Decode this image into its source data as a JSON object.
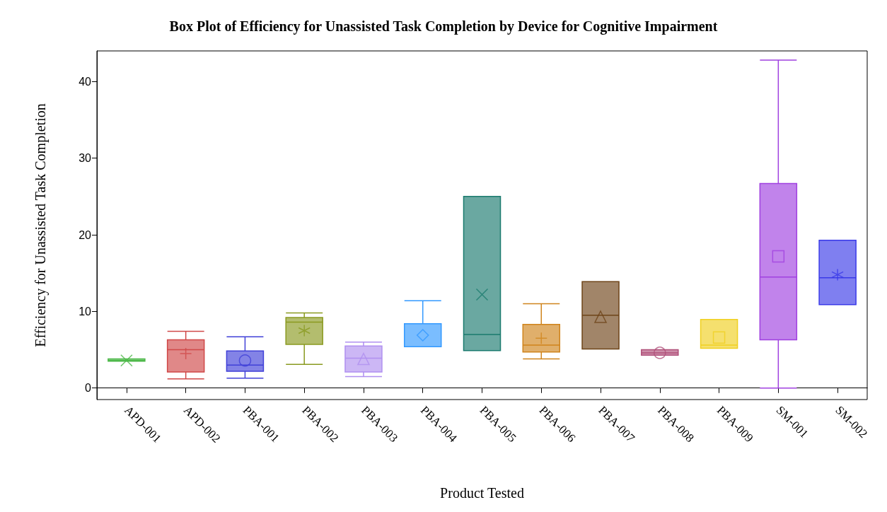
{
  "chart_data": {
    "type": "box",
    "title": "Box Plot of Efficiency for Unassisted Task Completion by Device for Cognitive Impairment",
    "xlabel": "Product Tested",
    "ylabel": "Efficiency for Unassisted Task Completion",
    "categories": [
      "APD-001",
      "APD-002",
      "PBA-001",
      "PBA-002",
      "PBA-003",
      "PBA-004",
      "PBA-005",
      "PBA-006",
      "PBA-007",
      "PBA-008",
      "PBA-009",
      "SM-001",
      "SM-002"
    ],
    "colors": [
      "#4cb848",
      "#d04848",
      "#4040d8",
      "#8a9a20",
      "#b090f0",
      "#3399ff",
      "#1a7a6e",
      "#d0841c",
      "#6e4418",
      "#b0507a",
      "#f0d020",
      "#a040e0",
      "#3a3ae8"
    ],
    "boxes": [
      {
        "low": 3.5,
        "q1": 3.5,
        "median": 3.6,
        "q3": 3.8,
        "high": 3.8,
        "mean": 3.6
      },
      {
        "low": 1.2,
        "q1": 2.1,
        "median": 5.0,
        "q3": 6.3,
        "high": 7.4,
        "mean": 4.5
      },
      {
        "low": 1.3,
        "q1": 2.2,
        "median": 3.0,
        "q3": 4.85,
        "high": 6.7,
        "mean": 3.6
      },
      {
        "low": 3.1,
        "q1": 5.7,
        "median": 8.6,
        "q3": 9.2,
        "high": 9.8,
        "mean": 7.5
      },
      {
        "low": 1.5,
        "q1": 2.1,
        "median": 3.9,
        "q3": 5.5,
        "high": 6.0,
        "mean": 3.8
      },
      {
        "low": 5.4,
        "q1": 5.4,
        "median": 5.4,
        "q3": 8.4,
        "high": 11.4,
        "mean": 6.9
      },
      {
        "low": 4.9,
        "q1": 4.9,
        "median": 7.0,
        "q3": 25.0,
        "high": 25.0,
        "mean": 12.2
      },
      {
        "low": 3.8,
        "q1": 4.7,
        "median": 5.6,
        "q3": 8.3,
        "high": 11.0,
        "mean": 6.5
      },
      {
        "low": 5.1,
        "q1": 5.1,
        "median": 9.5,
        "q3": 13.9,
        "high": 13.9,
        "mean": 9.3
      },
      {
        "low": 4.3,
        "q1": 4.3,
        "median": 4.6,
        "q3": 5.0,
        "high": 5.0,
        "mean": 4.6
      },
      {
        "low": 5.2,
        "q1": 5.2,
        "median": 5.6,
        "q3": 8.95,
        "high": 8.95,
        "mean": 6.6
      },
      {
        "low": 0,
        "q1": 6.3,
        "median": 14.5,
        "q3": 26.7,
        "high": 42.8,
        "mean": 17.2
      },
      {
        "low": 10.9,
        "q1": 10.9,
        "median": 14.4,
        "q3": 19.3,
        "high": 19.3,
        "mean": 14.8
      }
    ],
    "ylim": [
      -1.5,
      44
    ],
    "yticks": [
      0,
      10,
      20,
      30,
      40
    ]
  }
}
